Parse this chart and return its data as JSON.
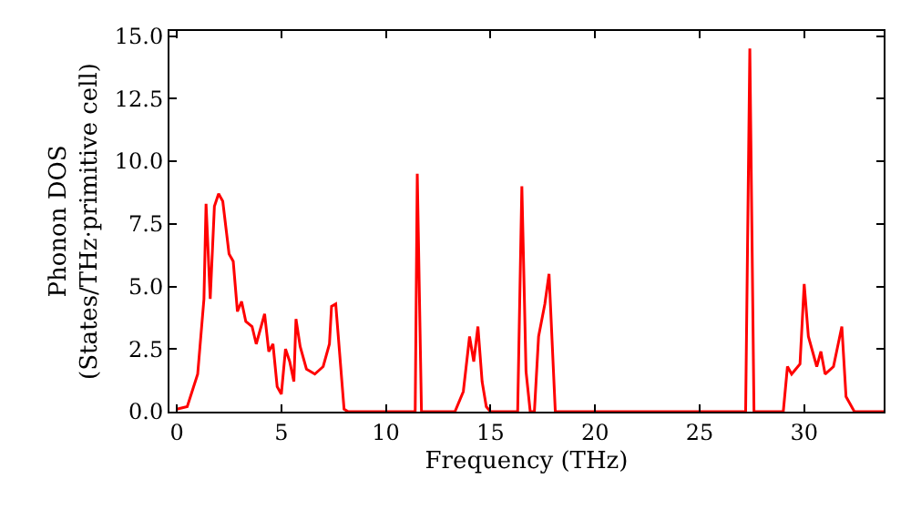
{
  "chart_data": {
    "type": "line",
    "xlabel": "Frequency (THz)",
    "ylabel": "Phonon DOS\n(States/THz·primitive cell)",
    "xlim": [
      -0.35,
      33.8
    ],
    "ylim": [
      0,
      15.2
    ],
    "xticks": [
      0,
      5,
      10,
      15,
      20,
      25,
      30
    ],
    "yticks": [
      {
        "value": 0,
        "label": "0.0"
      },
      2.5,
      {
        "value": 5,
        "label": "5.0"
      },
      7.5,
      {
        "value": 10,
        "label": "10.0"
      },
      12.5,
      {
        "value": 15,
        "label": "15.0"
      }
    ],
    "legend": false,
    "marker": "none",
    "line_style": "solid",
    "series": [
      {
        "color": "#ff0000",
        "x": [
          0,
          0.5,
          1.0,
          1.3,
          1.4,
          1.6,
          1.8,
          2.0,
          2.2,
          2.5,
          2.7,
          2.9,
          3.1,
          3.3,
          3.6,
          3.8,
          4.2,
          4.4,
          4.6,
          4.8,
          5.0,
          5.2,
          5.4,
          5.6,
          5.7,
          5.9,
          6.2,
          6.6,
          7.0,
          7.3,
          7.4,
          7.6,
          8.0,
          8.2,
          11.4,
          11.5,
          11.7,
          13.3,
          13.7,
          14.0,
          14.2,
          14.4,
          14.6,
          14.8,
          15.0,
          16.3,
          16.5,
          16.7,
          16.9,
          17.1,
          17.3,
          17.6,
          17.8,
          18.1,
          27.2,
          27.4,
          27.6,
          29.0,
          29.2,
          29.4,
          29.8,
          30.0,
          30.2,
          30.6,
          30.8,
          31.0,
          31.4,
          31.8,
          32.0,
          32.4,
          33.8
        ],
        "values": [
          0.1,
          0.2,
          1.5,
          4.5,
          8.3,
          4.5,
          8.2,
          8.7,
          8.4,
          6.3,
          6.0,
          4.0,
          4.4,
          3.6,
          3.4,
          2.7,
          3.9,
          2.4,
          2.7,
          1.0,
          0.7,
          2.5,
          2.0,
          1.2,
          3.7,
          2.6,
          1.7,
          1.5,
          1.8,
          2.7,
          4.2,
          4.3,
          0.1,
          0,
          0,
          9.5,
          0,
          0,
          0.8,
          3.0,
          2.0,
          3.4,
          1.2,
          0.2,
          0,
          0,
          9.0,
          1.6,
          0,
          0,
          3.0,
          4.3,
          5.5,
          0,
          0,
          14.5,
          0,
          0,
          1.8,
          1.5,
          1.9,
          5.1,
          3.0,
          1.8,
          2.4,
          1.5,
          1.8,
          3.4,
          0.6,
          0,
          0
        ]
      }
    ]
  }
}
